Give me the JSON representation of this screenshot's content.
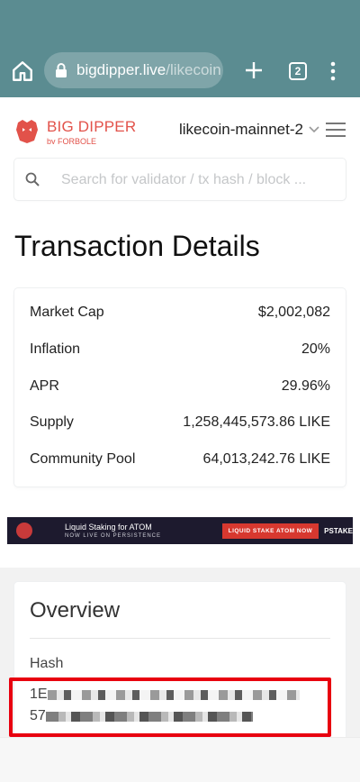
{
  "browser": {
    "url_main": "bigdipper.live",
    "url_rest": "/likecoin",
    "tab_count": "2",
    "theme_color": "#5b8c91"
  },
  "header": {
    "brand_name": "BIG DIPPER",
    "brand_sub": "by FORBOLE",
    "network": "likecoin-mainnet-2",
    "accent_color": "#e2524a"
  },
  "search": {
    "placeholder": "Search for validator / tx hash / block ..."
  },
  "page": {
    "title": "Transaction Details"
  },
  "stats": [
    {
      "label": "Market Cap",
      "value": "$2,002,082"
    },
    {
      "label": "Inflation",
      "value": "20%"
    },
    {
      "label": "APR",
      "value": "29.96%"
    },
    {
      "label": "Supply",
      "value": "1,258,445,573.86 LIKE"
    },
    {
      "label": "Community Pool",
      "value": "64,013,242.76 LIKE"
    }
  ],
  "banner": {
    "line1": "Liquid Staking for ATOM",
    "line2": "NOW LIVE ON PERSISTENCE",
    "cta": "LIQUID STAKE ATOM NOW",
    "brand": "PSTAKE"
  },
  "overview": {
    "title": "Overview",
    "hash_label": "Hash",
    "hash_prefix_1": "1E",
    "hash_prefix_2": "57"
  },
  "icons": [
    "home-icon",
    "lock-icon",
    "plus-icon",
    "more-icon",
    "logo-icon",
    "chevron-down-icon",
    "menu-icon",
    "search-icon"
  ]
}
